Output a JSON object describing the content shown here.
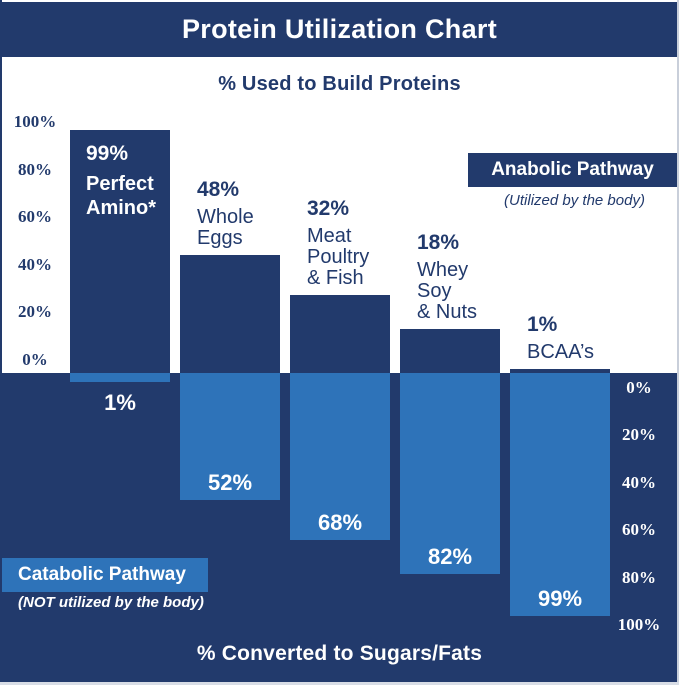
{
  "title": "Protein Utilization Chart",
  "top_axis_title": "% Used to Build Proteins",
  "bottom_axis_title": "% Converted to Sugars/Fats",
  "anabolic_pathway": {
    "label": "Anabolic Pathway",
    "note": "(Utilized by the body)"
  },
  "catabolic_pathway": {
    "label": "Catabolic Pathway",
    "note": "(NOT utilized by the body)"
  },
  "colors": {
    "navy": "#223A6C",
    "light_blue": "#2E73B9",
    "white": "#FFFFFF"
  },
  "left_axis": {
    "ticks": [
      {
        "label": "100%",
        "value": 100
      },
      {
        "label": "80%",
        "value": 80
      },
      {
        "label": "60%",
        "value": 60
      },
      {
        "label": "40%",
        "value": 40
      },
      {
        "label": "20%",
        "value": 20
      },
      {
        "label": "0%",
        "value": 0
      }
    ]
  },
  "right_axis": {
    "ticks": [
      {
        "label": "0%",
        "value": 0
      },
      {
        "label": "20%",
        "value": 20
      },
      {
        "label": "40%",
        "value": 40
      },
      {
        "label": "60%",
        "value": 60
      },
      {
        "label": "80%",
        "value": 80
      },
      {
        "label": "100%",
        "value": 100
      }
    ]
  },
  "bars": [
    {
      "category_lines": [
        "Perfect",
        "Amino*"
      ],
      "build_label": "99%",
      "converted_label": "1%",
      "label_inside": true
    },
    {
      "category_lines": [
        "Whole",
        "Eggs"
      ],
      "build_label": "48%",
      "converted_label": "52%",
      "label_inside": false
    },
    {
      "category_lines": [
        "Meat",
        "Poultry",
        "& Fish"
      ],
      "build_label": "32%",
      "converted_label": "68%",
      "label_inside": false
    },
    {
      "category_lines": [
        "Whey",
        "Soy",
        "& Nuts"
      ],
      "build_label": "18%",
      "converted_label": "82%",
      "label_inside": false
    },
    {
      "category_lines": [
        "BCAA’s"
      ],
      "build_label": "1%",
      "converted_label": "99%",
      "label_inside": false
    }
  ],
  "chart_data": {
    "type": "bar",
    "layout": "diverging-vertical",
    "title": "Protein Utilization Chart",
    "categories": [
      "Perfect Amino*",
      "Whole Eggs",
      "Meat Poultry & Fish",
      "Whey Soy & Nuts",
      "BCAA’s"
    ],
    "series": [
      {
        "name": "% Used to Build Proteins (Anabolic Pathway – Utilized by the body)",
        "values": [
          99,
          48,
          32,
          18,
          1
        ],
        "color": "#223A6C",
        "direction": "up"
      },
      {
        "name": "% Converted to Sugars/Fats (Catabolic Pathway – NOT utilized by the body)",
        "values": [
          1,
          52,
          68,
          82,
          99
        ],
        "color": "#2E73B9",
        "direction": "down"
      }
    ],
    "xlabel": "",
    "ylabel_top": "% Used to Build Proteins",
    "ylabel_bottom": "% Converted to Sugars/Fats",
    "ylim": [
      0,
      100
    ],
    "grid": false,
    "legend_position": "badges-inline"
  }
}
